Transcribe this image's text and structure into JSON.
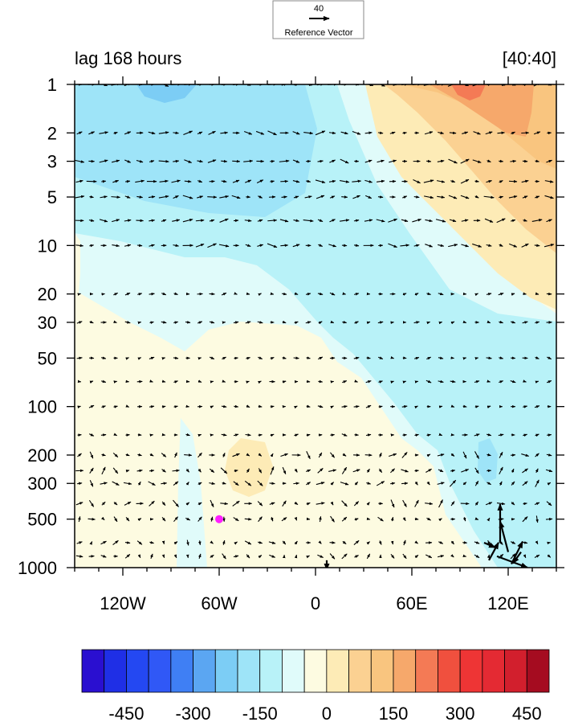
{
  "chart_data": {
    "type": "heatmap",
    "title_left": "lag 168 hours",
    "title_right": "[40:40]",
    "x_axis": {
      "range": [
        -150,
        150
      ],
      "ticks": [
        {
          "value": -120,
          "label": "120W"
        },
        {
          "value": -60,
          "label": "60W"
        },
        {
          "value": 0,
          "label": "0"
        },
        {
          "value": 60,
          "label": "60E"
        },
        {
          "value": 120,
          "label": "120E"
        }
      ],
      "minor_step": 15
    },
    "y_axis": {
      "scale": "log",
      "reversed": true,
      "range": [
        1,
        1000
      ],
      "ticks": [
        1,
        2,
        3,
        5,
        10,
        20,
        30,
        50,
        100,
        200,
        300,
        500,
        1000
      ]
    },
    "colorbar": {
      "levels": [
        -500,
        -450,
        -400,
        -350,
        -300,
        -250,
        -200,
        -150,
        -100,
        -50,
        0,
        50,
        100,
        150,
        200,
        250,
        300,
        350,
        400,
        450,
        500
      ],
      "colors": [
        "#2a0fd0",
        "#1f2fe6",
        "#2448f2",
        "#3058f6",
        "#3f7ff4",
        "#5ba6f2",
        "#7ccdf5",
        "#9ee4f8",
        "#b8f2f8",
        "#e0fbfa",
        "#fdfbe1",
        "#fdebb6",
        "#fbd192",
        "#f9c57f",
        "#f6a86b",
        "#f47a55",
        "#f0503e",
        "#ee3535",
        "#e42a33",
        "#d21f2d",
        "#a50c20"
      ],
      "tick_labels": [
        {
          "value": -450,
          "label": "-450"
        },
        {
          "value": -300,
          "label": "-300"
        },
        {
          "value": -150,
          "label": "-150"
        },
        {
          "value": 0,
          "label": "0"
        },
        {
          "value": 150,
          "label": "150"
        },
        {
          "value": 300,
          "label": "300"
        },
        {
          "value": 450,
          "label": "450"
        }
      ]
    },
    "reference_vector": {
      "magnitude": "40",
      "label": "Reference Vector"
    },
    "marker": {
      "lon": -60,
      "pressure": 500,
      "color": "#ff1fff"
    },
    "grid": false
  }
}
